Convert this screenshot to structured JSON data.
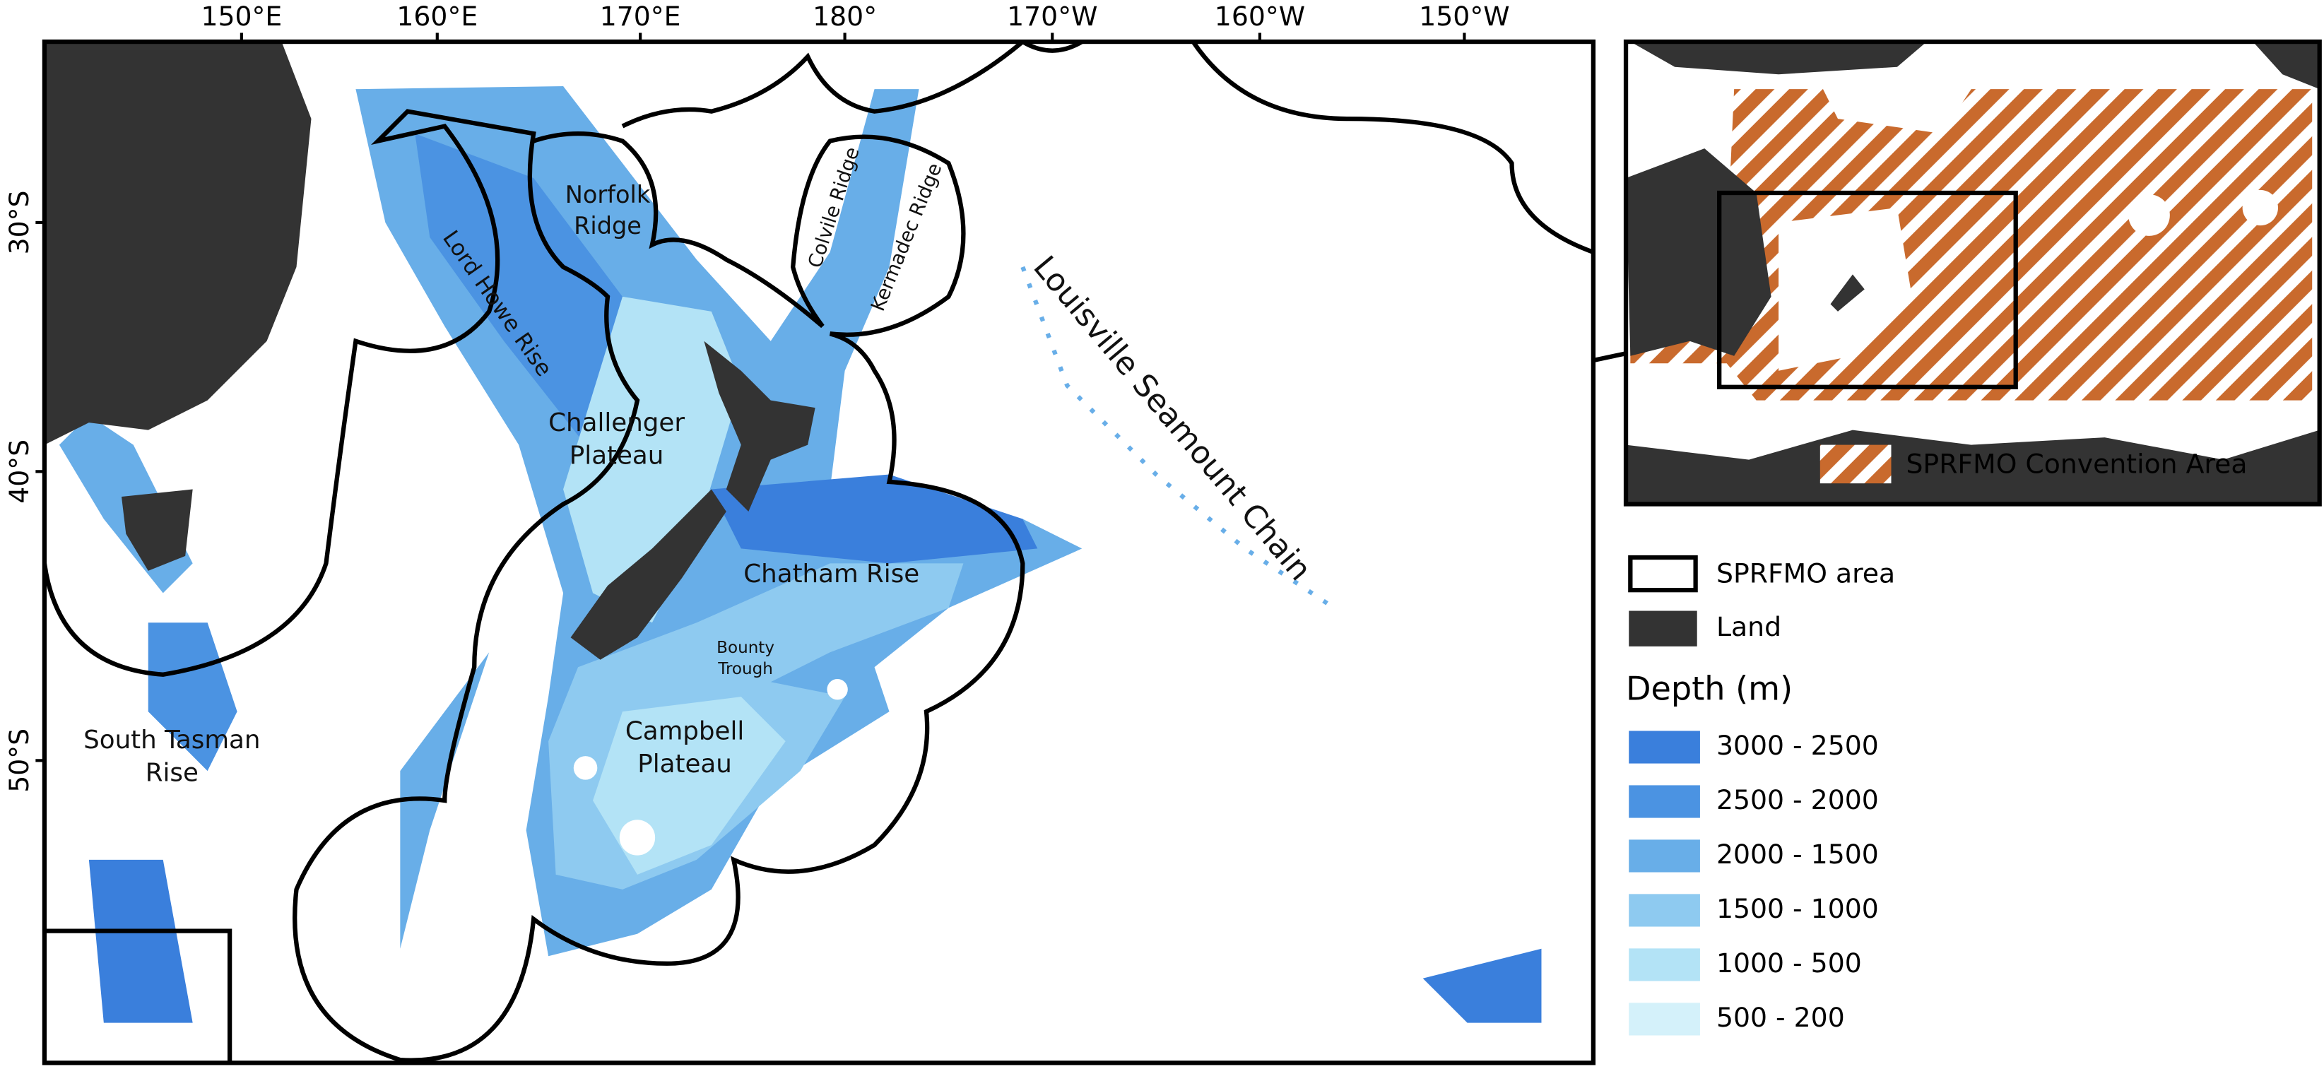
{
  "map": {
    "x_ticks": [
      "150°E",
      "160°E",
      "170°E",
      "180°",
      "170°W",
      "160°W",
      "150°W"
    ],
    "y_ticks": [
      "30°S",
      "40°S",
      "50°S"
    ],
    "labels": [
      {
        "lines": [
          "Norfolk",
          "Ridge"
        ]
      },
      {
        "lines": [
          "Lord Howe Rise"
        ]
      },
      {
        "lines": [
          "Challenger",
          "Plateau"
        ]
      },
      {
        "lines": [
          "Colvile Ridge"
        ]
      },
      {
        "lines": [
          "Kermadec Ridge"
        ]
      },
      {
        "lines": [
          "Louisville Seamount Chain"
        ]
      },
      {
        "lines": [
          "Chatham Rise"
        ]
      },
      {
        "lines": [
          "Bounty",
          "Trough"
        ]
      },
      {
        "lines": [
          "Campbell",
          "Plateau"
        ]
      },
      {
        "lines": [
          "South Tasman",
          "Rise"
        ]
      }
    ]
  },
  "inset": {
    "legend": "SPRFMO Convention Area"
  },
  "legend": {
    "area": "SPRFMO area",
    "land": "Land",
    "depth_title": "Depth (m)",
    "depth_classes": [
      {
        "label": "3000 - 2500",
        "color": "#3a7fdc"
      },
      {
        "label": "2500 - 2000",
        "color": "#4b93e2"
      },
      {
        "label": "2000 - 1500",
        "color": "#68aee8"
      },
      {
        "label": "1500 - 1000",
        "color": "#8ecaf0"
      },
      {
        "label": "1000 - 500",
        "color": "#b3e3f6"
      },
      {
        "label": "500 - 200",
        "color": "#d4f1fa"
      }
    ]
  }
}
